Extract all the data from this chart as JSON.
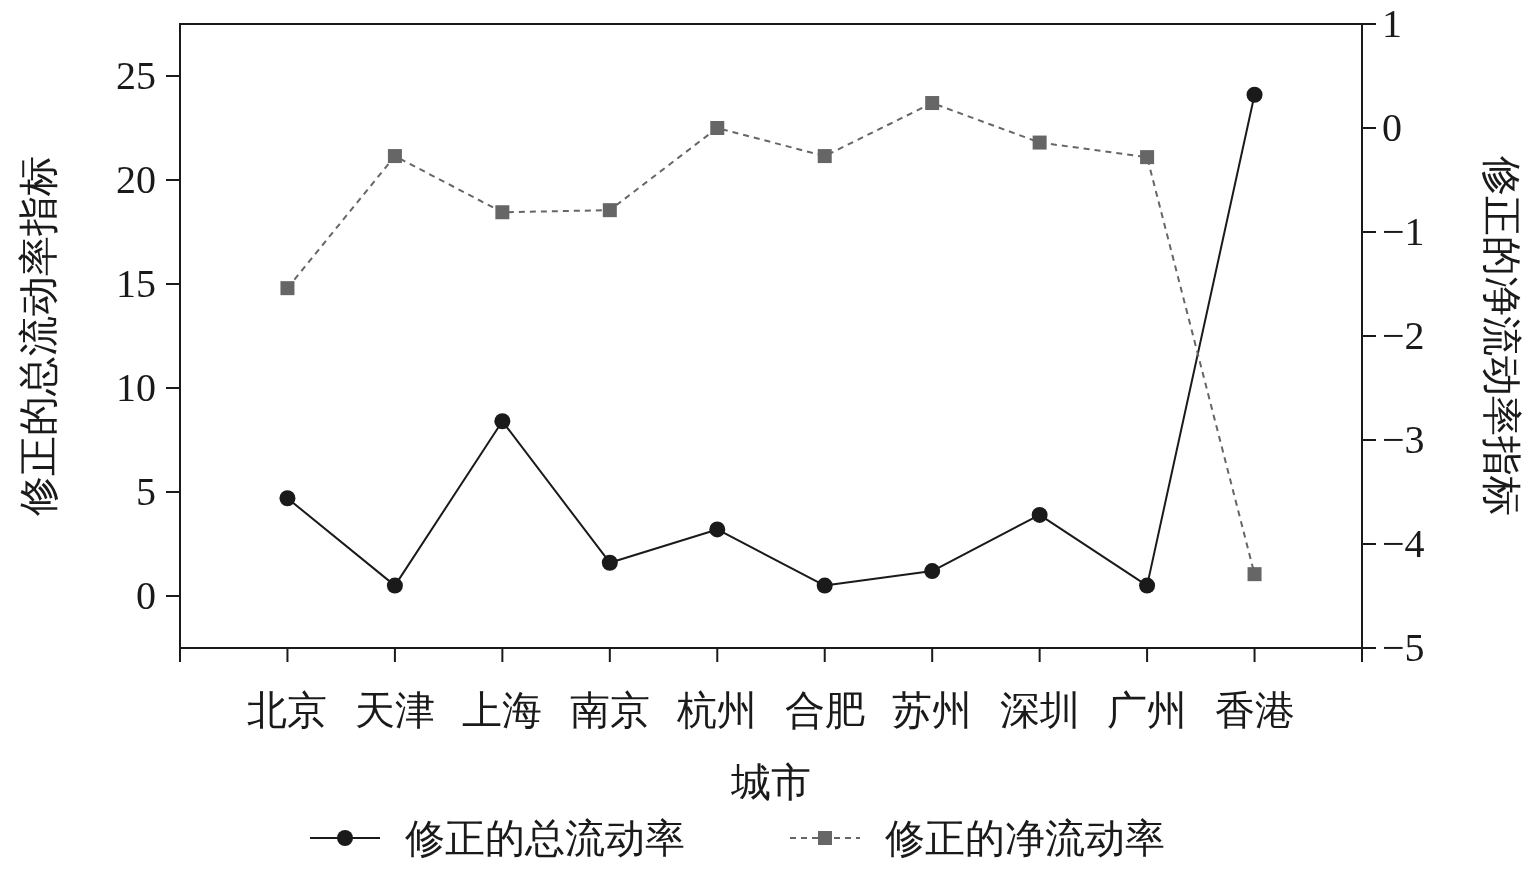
{
  "chart_data": {
    "type": "line",
    "xlabel": "城市",
    "ylabel": "修正的总流动率指标",
    "y2label": "修正的净流动率指标",
    "categories": [
      "北京",
      "天津",
      "上海",
      "南京",
      "杭州",
      "合肥",
      "苏州",
      "深圳",
      "广州",
      "香港"
    ],
    "series": [
      {
        "name": "修正的总流动率",
        "color": "#1a1a1a",
        "marker": "circle",
        "line_style": "solid",
        "values": [
          4.7,
          0.5,
          8.4,
          1.6,
          3.2,
          0.5,
          1.2,
          3.9,
          0.5,
          24.1
        ]
      },
      {
        "name": "修正的净流动率",
        "color": "#666666",
        "marker": "square",
        "line_style": "dashed",
        "axis": "y2",
        "values": [
          -1.54,
          -0.27,
          -0.81,
          -0.79,
          0.0,
          -0.27,
          0.24,
          -0.14,
          -0.28,
          -4.29
        ]
      }
    ],
    "ylim": [
      -2.5,
      27.5
    ],
    "yticks": [
      0,
      5,
      10,
      15,
      20,
      25
    ],
    "y2lim": [
      -5,
      1
    ],
    "y2ticks": [
      {
        "value": -5,
        "label": "−5"
      },
      {
        "value": -4,
        "label": "−4"
      },
      {
        "value": -3,
        "label": "−3"
      },
      {
        "value": -2,
        "label": "−2"
      },
      {
        "value": -1,
        "label": "−1"
      },
      0,
      1
    ],
    "legend": "bottom"
  }
}
